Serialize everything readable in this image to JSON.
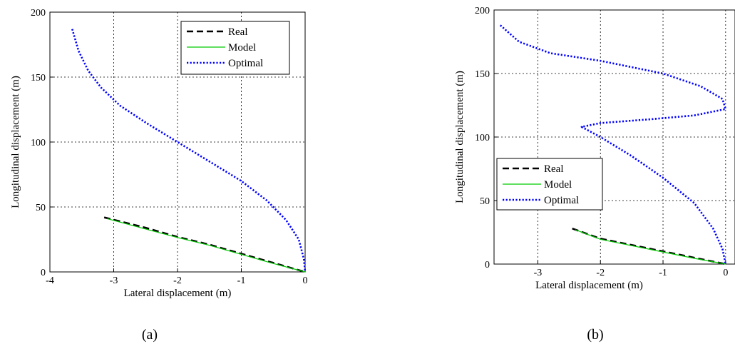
{
  "chart_data": [
    {
      "type": "line",
      "caption": "(a)",
      "xlabel": "Lateral displacement (m)",
      "ylabel": "Longitudinal displacement (m)",
      "xlim": [
        -4,
        0
      ],
      "ylim": [
        0,
        200
      ],
      "xticks": [
        -4,
        -3,
        -2,
        -1,
        0
      ],
      "yticks": [
        0,
        50,
        100,
        150,
        200
      ],
      "grid": true,
      "legend_position": "top-right",
      "series": [
        {
          "name": "Real",
          "color": "#000000",
          "style": "dashed",
          "x": [
            -3.15,
            -2.5,
            -2.0,
            -1.5,
            -1.0,
            -0.5,
            0.0
          ],
          "y": [
            42,
            34,
            27,
            21,
            14,
            7,
            0
          ]
        },
        {
          "name": "Model",
          "color": "#00cc00",
          "style": "solid",
          "x": [
            -3.1,
            -2.5,
            -2.0,
            -1.5,
            -1.0,
            -0.5,
            0.0
          ],
          "y": [
            41,
            33,
            26.5,
            20.5,
            13.5,
            6.5,
            0
          ]
        },
        {
          "name": "Optimal",
          "color": "#0000ff",
          "style": "dotted",
          "x": [
            -3.65,
            -3.55,
            -3.4,
            -3.2,
            -2.9,
            -2.5,
            -2.0,
            -1.5,
            -1.0,
            -0.6,
            -0.3,
            -0.1,
            -0.02,
            0.0
          ],
          "y": [
            187,
            170,
            155,
            142,
            128,
            115,
            100,
            85,
            70,
            55,
            40,
            25,
            10,
            0
          ]
        }
      ]
    },
    {
      "type": "line",
      "caption": "(b)",
      "xlabel": "Lateral displacement (m)",
      "ylabel": "Longitudinal displacement (m)",
      "xlim": [
        -3.7,
        0.15
      ],
      "ylim": [
        0,
        200
      ],
      "xticks": [
        -3,
        -2,
        -1,
        0
      ],
      "yticks": [
        0,
        50,
        100,
        150,
        200
      ],
      "grid": true,
      "legend_position": "bottom-left",
      "series": [
        {
          "name": "Real",
          "color": "#000000",
          "style": "dashed",
          "x": [
            -2.45,
            -2.0,
            -1.5,
            -1.0,
            -0.5,
            0.0
          ],
          "y": [
            28,
            20,
            15,
            10,
            5,
            0
          ]
        },
        {
          "name": "Model",
          "color": "#00cc00",
          "style": "solid",
          "x": [
            -2.4,
            -2.0,
            -1.5,
            -1.0,
            -0.5,
            0.0
          ],
          "y": [
            27,
            19.5,
            14.5,
            9.5,
            4.5,
            0
          ]
        },
        {
          "name": "Optimal",
          "color": "#0000ff",
          "style": "dotted",
          "x": [
            -3.6,
            -3.3,
            -2.8,
            -2.0,
            -1.0,
            -0.4,
            -0.05,
            0.0,
            -0.5,
            -1.2,
            -2.0,
            -2.3,
            -2.0,
            -1.5,
            -1.0,
            -0.5,
            -0.2,
            -0.05,
            0.0
          ],
          "y": [
            188,
            175,
            166,
            160,
            150,
            140,
            130,
            122,
            117,
            114,
            111,
            108,
            100,
            85,
            68,
            48,
            28,
            12,
            0
          ]
        }
      ]
    }
  ],
  "captions": {
    "a": "(a)",
    "b": "(b)"
  }
}
